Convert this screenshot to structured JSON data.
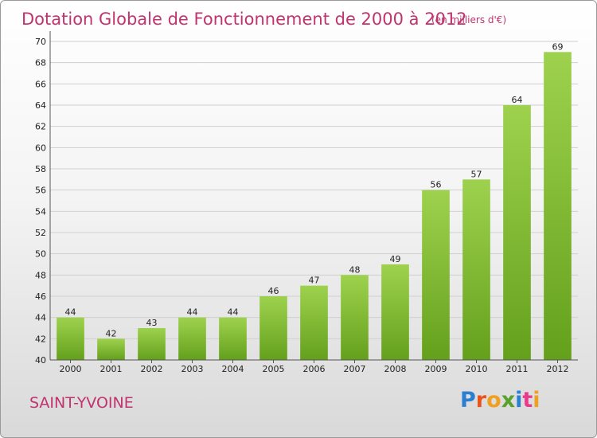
{
  "header": {
    "title": "Dotation Globale de Fonctionnement de 2000 à 2012",
    "unit": "(en milliers d'€)"
  },
  "footer": {
    "commune": "SAINT-YVOINE",
    "logo_text": "Proxiti",
    "logo_colors": [
      "#2a7fd0",
      "#e8541b",
      "#f0a020",
      "#5aa02c",
      "#2a7fd0",
      "#e83a8c",
      "#f0a020"
    ]
  },
  "chart_data": {
    "type": "bar",
    "title": "Dotation Globale de Fonctionnement de 2000 à 2012",
    "subtitle": "(en milliers d'€)",
    "categories": [
      "2000",
      "2001",
      "2002",
      "2003",
      "2004",
      "2005",
      "2006",
      "2007",
      "2008",
      "2009",
      "2010",
      "2011",
      "2012"
    ],
    "values": [
      44,
      42,
      43,
      44,
      44,
      46,
      47,
      48,
      49,
      56,
      57,
      64,
      69
    ],
    "ylim": [
      40,
      70
    ],
    "yticks": [
      40,
      42,
      44,
      46,
      48,
      50,
      52,
      54,
      56,
      58,
      60,
      62,
      64,
      66,
      68,
      70
    ],
    "grid": true,
    "bar_color_top": "#9ed24e",
    "bar_color_bottom": "#64a01c"
  }
}
